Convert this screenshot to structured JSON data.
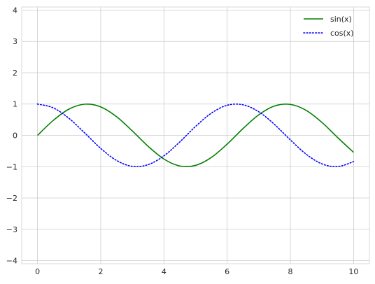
{
  "chart_data": {
    "type": "line",
    "title": "",
    "xlabel": "",
    "ylabel": "",
    "xlim": [
      -0.5,
      10.5
    ],
    "ylim": [
      -4.1,
      4.1
    ],
    "x_ticks": [
      0,
      2,
      4,
      6,
      8,
      10
    ],
    "y_ticks": [
      -4,
      -3,
      -2,
      -1,
      0,
      1,
      2,
      3,
      4
    ],
    "x_tick_labels": [
      "0",
      "2",
      "4",
      "6",
      "8",
      "10"
    ],
    "y_tick_labels": [
      "−4",
      "−3",
      "−2",
      "−1",
      "0",
      "1",
      "2",
      "3",
      "4"
    ],
    "grid": true,
    "legend_position": "top-right",
    "x": [
      0,
      0.5,
      1,
      1.5,
      2,
      2.5,
      3,
      3.5,
      4,
      4.5,
      5,
      5.5,
      6,
      6.5,
      7,
      7.5,
      8,
      8.5,
      9,
      9.5,
      10
    ],
    "series": [
      {
        "name": "sin(x)",
        "color": "#008000",
        "style": "solid",
        "values": [
          0.0,
          0.479,
          0.841,
          0.997,
          0.909,
          0.598,
          0.141,
          -0.351,
          -0.757,
          -0.978,
          -0.959,
          -0.706,
          -0.279,
          0.215,
          0.657,
          0.938,
          0.989,
          0.798,
          0.412,
          -0.075,
          -0.544
        ]
      },
      {
        "name": "cos(x)",
        "color": "#0000ff",
        "style": "dotted",
        "values": [
          1.0,
          0.878,
          0.54,
          0.071,
          -0.416,
          -0.801,
          -0.99,
          -0.936,
          -0.654,
          -0.211,
          0.284,
          0.709,
          0.96,
          0.977,
          0.754,
          0.347,
          -0.146,
          -0.602,
          -0.911,
          -0.997,
          -0.839
        ]
      }
    ]
  }
}
